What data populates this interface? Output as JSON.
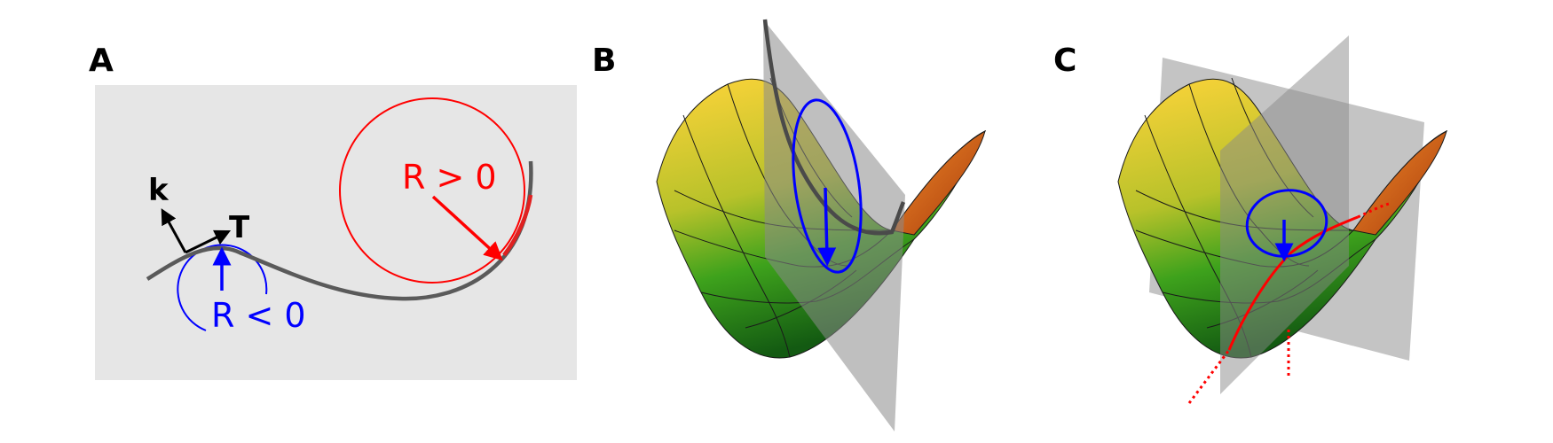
{
  "panels": {
    "a": {
      "label": "A",
      "k_label": "k",
      "t_label": "T",
      "neg_label": "R < 0",
      "pos_label": "R > 0"
    },
    "b": {
      "label": "B"
    },
    "c": {
      "label": "C"
    }
  },
  "colors": {
    "background_panel": "#e6e6e6",
    "curve": "#5a5a5a",
    "negative": "#0000ff",
    "positive": "#ff0000",
    "surface_low": "#2e9a1b",
    "surface_high": "#ffc82e",
    "surface_edge": "#e8621a",
    "plane": "#8a8a8a"
  }
}
